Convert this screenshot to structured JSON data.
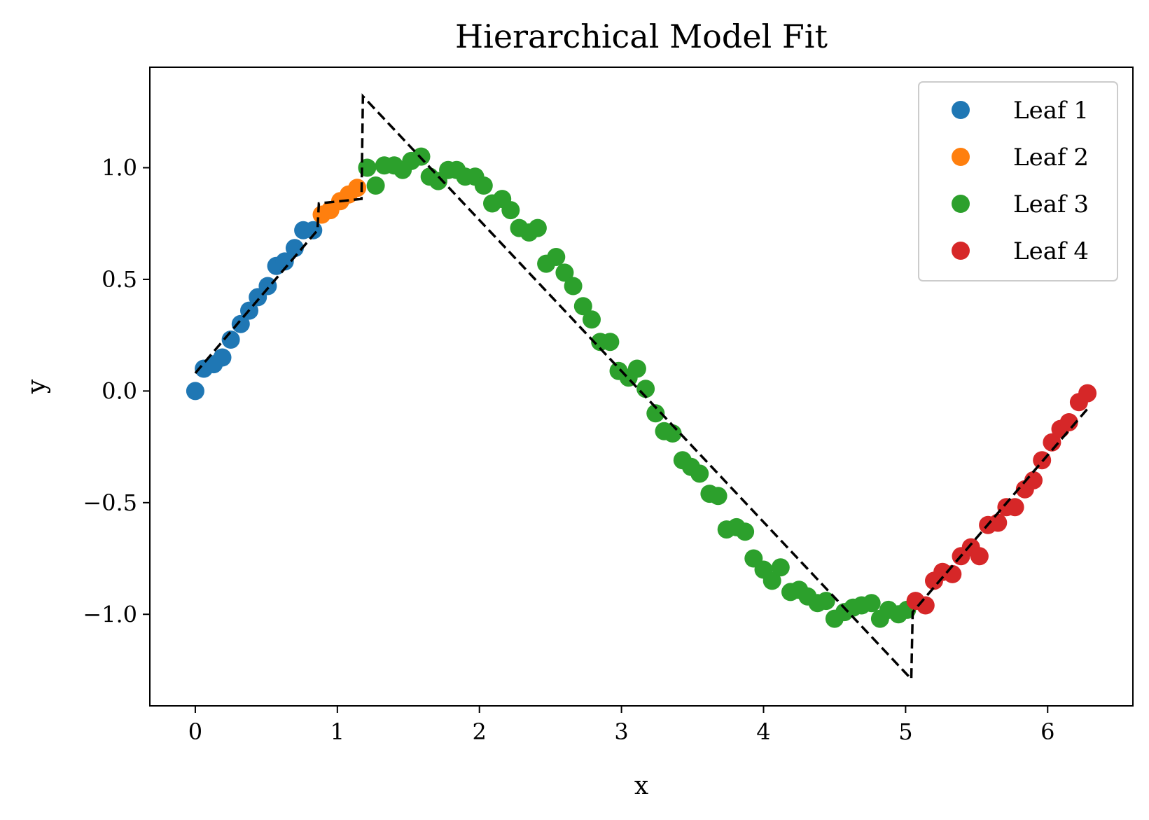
{
  "chart_data": {
    "type": "scatter",
    "title": "Hierarchical Model Fit",
    "xlabel": "x",
    "ylabel": "y",
    "xlim": [
      -0.32,
      6.6
    ],
    "ylim": [
      -1.41,
      1.45
    ],
    "xticks": [
      0,
      1,
      2,
      3,
      4,
      5,
      6
    ],
    "xtick_labels": [
      "0",
      "1",
      "2",
      "3",
      "4",
      "5",
      "6"
    ],
    "yticks": [
      -1.0,
      -0.5,
      0.0,
      0.5,
      1.0
    ],
    "ytick_labels": [
      "−1.0",
      "−0.5",
      "0.0",
      "0.5",
      "1.0"
    ],
    "grid": false,
    "legend_position": "top-right",
    "series": [
      {
        "name": "Leaf 1",
        "color": "#1f77b4",
        "x": [
          0.0,
          0.06,
          0.13,
          0.19,
          0.25,
          0.32,
          0.38,
          0.44,
          0.51,
          0.57,
          0.63,
          0.7,
          0.76,
          0.83
        ],
        "y": [
          0.0,
          0.1,
          0.12,
          0.15,
          0.23,
          0.3,
          0.36,
          0.42,
          0.47,
          0.56,
          0.58,
          0.64,
          0.72,
          0.72
        ]
      },
      {
        "name": "Leaf 2",
        "color": "#ff7f0e",
        "x": [
          0.89,
          0.95,
          1.02,
          1.08,
          1.14
        ],
        "y": [
          0.79,
          0.81,
          0.85,
          0.88,
          0.91
        ]
      },
      {
        "name": "Leaf 3",
        "color": "#2ca02c",
        "x": [
          1.21,
          1.27,
          1.33,
          1.4,
          1.46,
          1.52,
          1.59,
          1.65,
          1.71,
          1.78,
          1.84,
          1.9,
          1.97,
          2.03,
          2.09,
          2.16,
          2.22,
          2.28,
          2.35,
          2.41,
          2.47,
          2.54,
          2.6,
          2.66,
          2.73,
          2.79,
          2.85,
          2.92,
          2.98,
          3.05,
          3.11,
          3.17,
          3.24,
          3.3,
          3.36,
          3.43,
          3.49,
          3.55,
          3.62,
          3.68,
          3.74,
          3.81,
          3.87,
          3.93,
          4.0,
          4.06,
          4.12,
          4.19,
          4.25,
          4.31,
          4.38,
          4.44,
          4.5,
          4.57,
          4.63,
          4.69,
          4.76,
          4.82,
          4.88,
          4.95,
          5.01
        ],
        "y": [
          1.0,
          0.92,
          1.01,
          1.01,
          0.99,
          1.03,
          1.05,
          0.96,
          0.94,
          0.99,
          0.99,
          0.96,
          0.96,
          0.92,
          0.84,
          0.86,
          0.81,
          0.73,
          0.71,
          0.73,
          0.57,
          0.6,
          0.53,
          0.47,
          0.38,
          0.32,
          0.22,
          0.22,
          0.09,
          0.06,
          0.1,
          0.01,
          -0.1,
          -0.18,
          -0.19,
          -0.31,
          -0.34,
          -0.37,
          -0.46,
          -0.47,
          -0.62,
          -0.61,
          -0.63,
          -0.75,
          -0.8,
          -0.85,
          -0.79,
          -0.9,
          -0.89,
          -0.92,
          -0.95,
          -0.94,
          -1.02,
          -0.99,
          -0.97,
          -0.96,
          -0.95,
          -1.02,
          -0.98,
          -1.0,
          -0.98
        ]
      },
      {
        "name": "Leaf 4",
        "color": "#d62728",
        "x": [
          5.07,
          5.14,
          5.2,
          5.26,
          5.33,
          5.39,
          5.46,
          5.52,
          5.58,
          5.65,
          5.71,
          5.77,
          5.84,
          5.9,
          5.96,
          6.03,
          6.09,
          6.15,
          6.22,
          6.28
        ],
        "y": [
          -0.94,
          -0.96,
          -0.85,
          -0.81,
          -0.82,
          -0.74,
          -0.7,
          -0.74,
          -0.6,
          -0.59,
          -0.52,
          -0.52,
          -0.44,
          -0.4,
          -0.31,
          -0.23,
          -0.17,
          -0.14,
          -0.05,
          -0.01
        ]
      }
    ],
    "fit_line": {
      "color": "#000000",
      "style": "dashed",
      "x": [
        0.0,
        0.86,
        0.87,
        1.17,
        1.18,
        5.04,
        5.05,
        6.28
      ],
      "y": [
        0.08,
        0.72,
        0.84,
        0.86,
        1.32,
        -1.29,
        -0.99,
        -0.08
      ]
    }
  }
}
